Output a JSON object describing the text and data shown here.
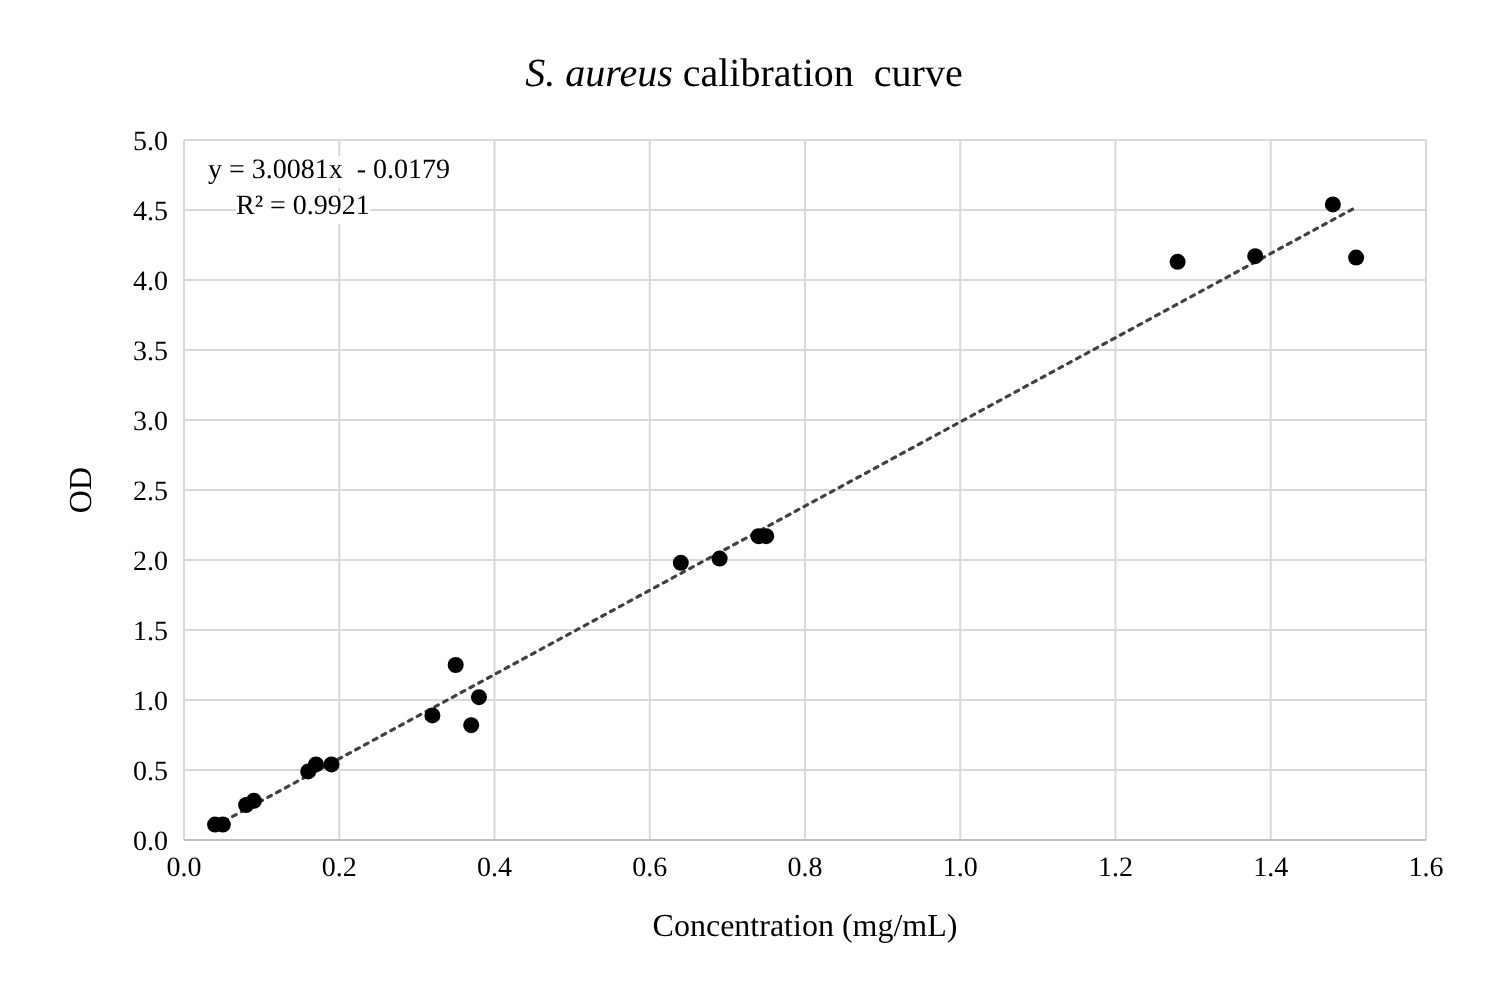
{
  "chart_data": {
    "type": "scatter",
    "title": "S. aureus calibration  curve",
    "xlabel": "Concentration  (mg/mL)",
    "ylabel": "OD",
    "annotations": [
      "y = 3.0081x  - 0.0179",
      "R² = 0.9921"
    ],
    "x": [
      0.04,
      0.05,
      0.08,
      0.09,
      0.16,
      0.17,
      0.19,
      0.32,
      0.35,
      0.37,
      0.38,
      0.64,
      0.69,
      0.74,
      0.75,
      1.28,
      1.38,
      1.48,
      1.51
    ],
    "series": [
      {
        "color": "#000000",
        "marker": "circle",
        "values": [
          0.11,
          0.11,
          0.25,
          0.28,
          0.49,
          0.54,
          0.54,
          0.89,
          1.25,
          0.82,
          1.02,
          1.98,
          2.01,
          2.17,
          2.17,
          4.13,
          4.17,
          4.54,
          4.16
        ]
      },
      {
        "type": "line",
        "color": "#404040",
        "marker": "none",
        "line_style": "dotted",
        "x": [
          0.04,
          1.51
        ],
        "values": [
          0.1,
          4.52
        ]
      }
    ],
    "xlim": [
      0,
      1.6
    ],
    "xticks": [
      {
        "value": 0,
        "label": "0.0"
      },
      0.2,
      0.4,
      0.6,
      0.8,
      {
        "value": 1,
        "label": "1.0"
      },
      1.2,
      1.4,
      1.6
    ],
    "ylim": [
      0,
      5
    ],
    "yticks": [
      {
        "value": 0,
        "label": "0.0"
      },
      0.5,
      {
        "value": 1,
        "label": "1.0"
      },
      1.5,
      {
        "value": 2,
        "label": "2.0"
      },
      2.5,
      {
        "value": 3,
        "label": "3.0"
      },
      3.5,
      {
        "value": 4,
        "label": "4.0"
      },
      4.5,
      {
        "value": 5,
        "label": "5.0"
      }
    ],
    "grid": true,
    "legend": false
  }
}
